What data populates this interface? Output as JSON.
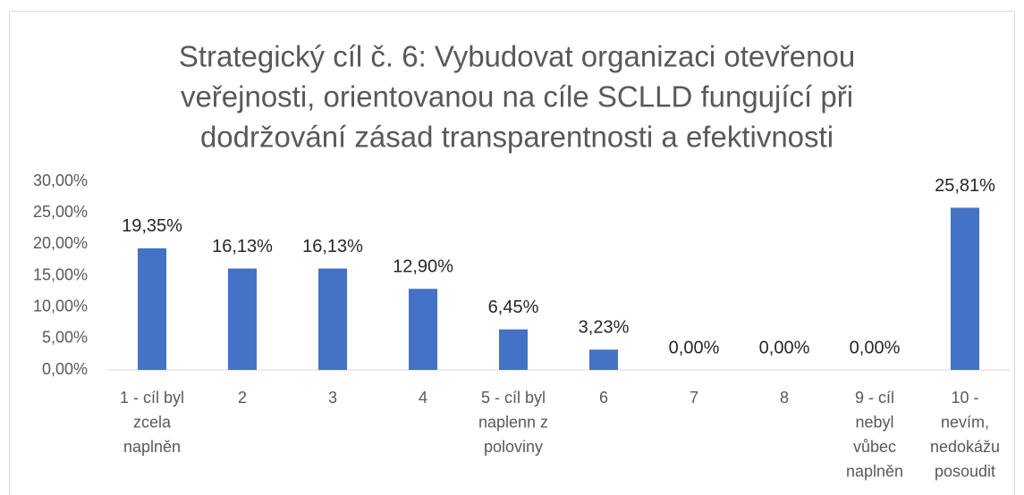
{
  "chart_data": {
    "type": "bar",
    "title": [
      "Strategický cíl č. 6: Vybudovat organizaci otevřenou",
      "veřejnosti, orientovanou na cíle SCLLD fungující při",
      "dodržování zásad transparentnosti a efektivnosti"
    ],
    "categories": [
      [
        "1 - cíl byl",
        "zcela",
        "naplněn"
      ],
      [
        "2"
      ],
      [
        "3"
      ],
      [
        "4"
      ],
      [
        "5 - cíl byl",
        "naplenn z",
        "poloviny"
      ],
      [
        "6"
      ],
      [
        "7"
      ],
      [
        "8"
      ],
      [
        "9 - cíl",
        "nebyl",
        "vůbec",
        "naplněn"
      ],
      [
        "10 -",
        "nevím,",
        "nedokážu",
        "posoudit"
      ]
    ],
    "values": [
      19.35,
      16.13,
      16.13,
      12.9,
      6.45,
      3.23,
      0,
      0,
      0,
      25.81
    ],
    "value_labels": [
      "19,35%",
      "16,13%",
      "16,13%",
      "12,90%",
      "6,45%",
      "3,23%",
      "0,00%",
      "0,00%",
      "0,00%",
      "25,81%"
    ],
    "color": "#4472c4",
    "ylim": [
      0,
      30
    ],
    "yticks": [
      {
        "value": 0,
        "label": "0,00%"
      },
      {
        "value": 5,
        "label": "5,00%"
      },
      {
        "value": 10,
        "label": "10,00%"
      },
      {
        "value": 15,
        "label": "15,00%"
      },
      {
        "value": 20,
        "label": "20,00%"
      },
      {
        "value": 25,
        "label": "25,00%"
      },
      {
        "value": 30,
        "label": "30,00%"
      }
    ],
    "grid": false
  }
}
